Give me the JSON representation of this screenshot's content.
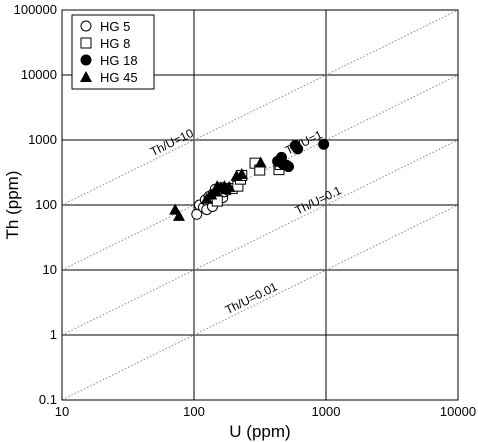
{
  "chart_data": {
    "type": "scatter",
    "xscale": "log",
    "yscale": "log",
    "xlim": [
      10,
      10000
    ],
    "ylim": [
      0.1,
      100000
    ],
    "xlabel": "U (ppm)",
    "ylabel": "Th (ppm)",
    "xticks": [
      "10",
      "100",
      "1000",
      "10000"
    ],
    "yticks": [
      "0.1",
      "1",
      "10",
      "100",
      "1000",
      "10000",
      "100000"
    ],
    "grid": true,
    "legend_position": "top-left",
    "ratio_lines": [
      {
        "ratio": 10,
        "label": "Th/U=10"
      },
      {
        "ratio": 1,
        "label": "Th/U=1"
      },
      {
        "ratio": 0.1,
        "label": "Th/U=0.1"
      },
      {
        "ratio": 0.01,
        "label": "Th/U=0.01"
      }
    ],
    "series": [
      {
        "name": "HG 5",
        "marker": "open-circle",
        "points": [
          [
            105,
            72
          ],
          [
            110,
            100
          ],
          [
            118,
            92
          ],
          [
            122,
            120
          ],
          [
            128,
            110
          ],
          [
            130,
            135
          ],
          [
            135,
            125
          ],
          [
            140,
            150
          ],
          [
            145,
            175
          ],
          [
            150,
            140
          ],
          [
            155,
            165
          ],
          [
            160,
            185
          ],
          [
            165,
            130
          ],
          [
            170,
            160
          ],
          [
            175,
            180
          ],
          [
            180,
            170
          ],
          [
            125,
            85
          ],
          [
            138,
            95
          ]
        ]
      },
      {
        "name": "HG 8",
        "marker": "open-square",
        "points": [
          [
            150,
            115
          ],
          [
            195,
            180
          ],
          [
            215,
            195
          ],
          [
            225,
            250
          ],
          [
            230,
            285
          ],
          [
            290,
            440
          ],
          [
            315,
            345
          ],
          [
            440,
            350
          ],
          [
            450,
            420
          ]
        ]
      },
      {
        "name": "HG 18",
        "marker": "filled-circle",
        "points": [
          [
            430,
            470
          ],
          [
            460,
            540
          ],
          [
            470,
            430
          ],
          [
            500,
            410
          ],
          [
            520,
            390
          ],
          [
            585,
            820
          ],
          [
            610,
            730
          ],
          [
            960,
            860
          ]
        ]
      },
      {
        "name": "HG 45",
        "marker": "filled-triangle",
        "points": [
          [
            72,
            85
          ],
          [
            77,
            68
          ],
          [
            125,
            125
          ],
          [
            135,
            145
          ],
          [
            145,
            165
          ],
          [
            150,
            195
          ],
          [
            160,
            185
          ],
          [
            170,
            195
          ],
          [
            175,
            175
          ],
          [
            185,
            190
          ],
          [
            210,
            280
          ],
          [
            230,
            300
          ],
          [
            320,
            450
          ]
        ]
      }
    ]
  }
}
